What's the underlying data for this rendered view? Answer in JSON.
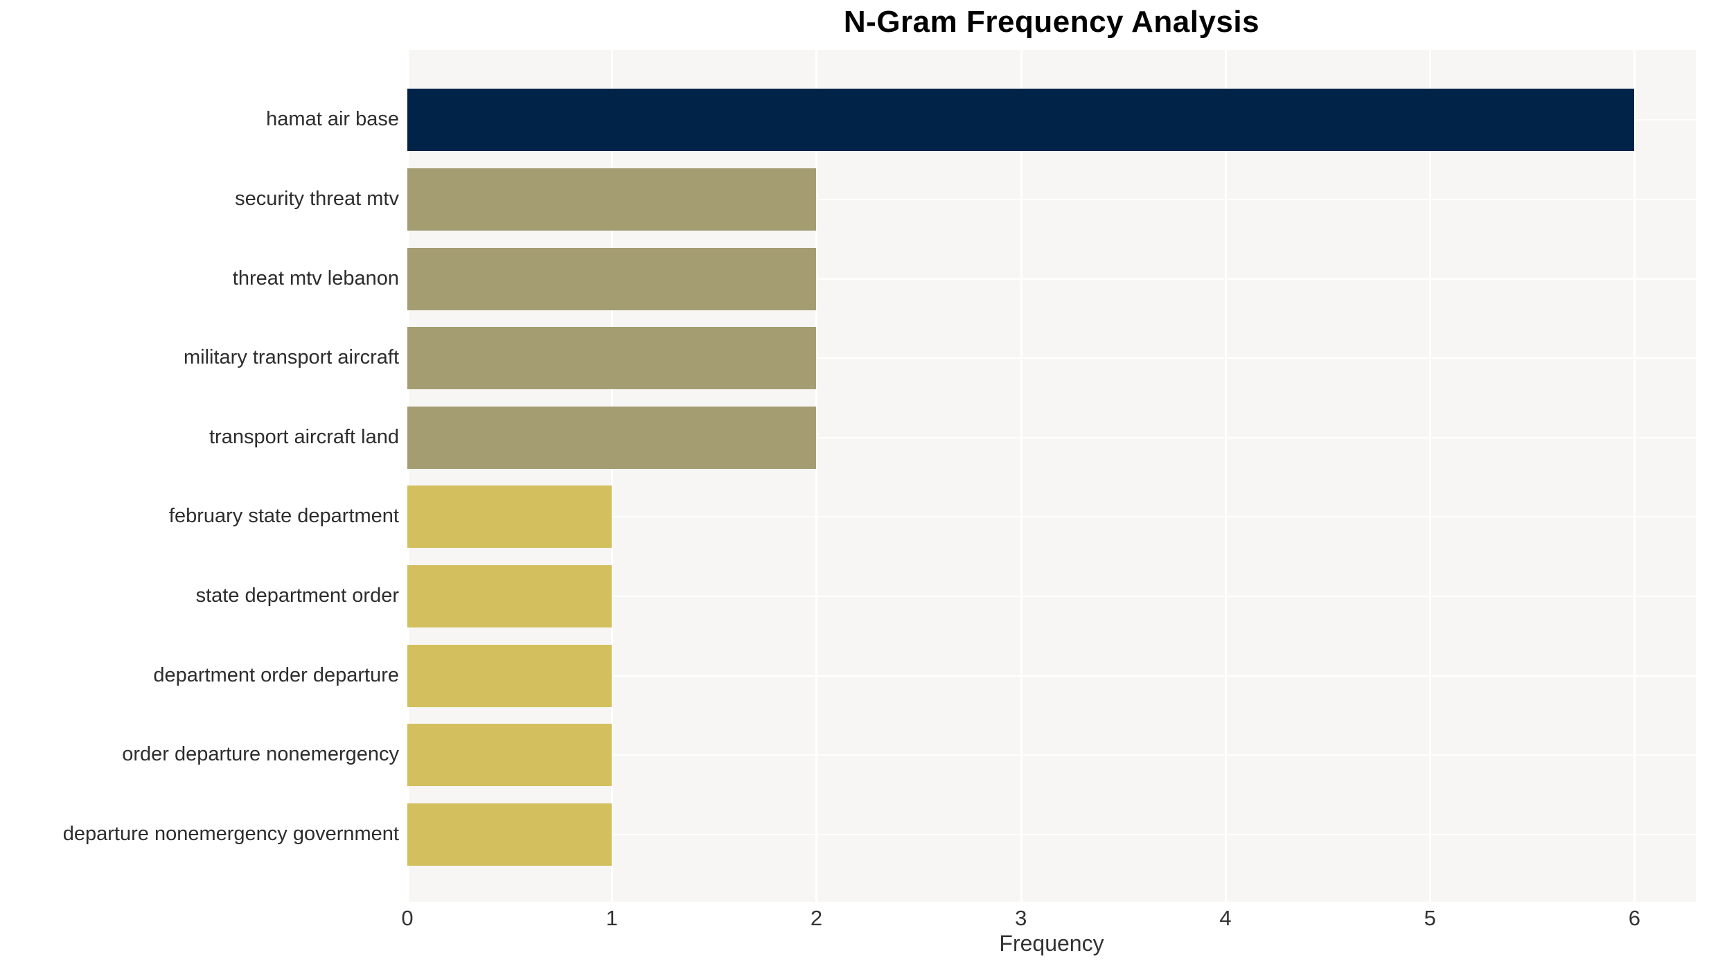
{
  "page": {
    "background": "#ffffff"
  },
  "chart_data": {
    "type": "bar",
    "orientation": "horizontal",
    "title": "N-Gram Frequency Analysis",
    "xlabel": "Frequency",
    "ylabel": "",
    "categories": [
      "hamat air base",
      "security threat mtv",
      "threat mtv lebanon",
      "military transport aircraft",
      "transport aircraft land",
      "february state department",
      "state department order",
      "department order departure",
      "order departure nonemergency",
      "departure nonemergency government"
    ],
    "values": [
      6,
      2,
      2,
      2,
      2,
      1,
      1,
      1,
      1,
      1
    ],
    "bar_colors": [
      "#022348",
      "#a59d72",
      "#a59d72",
      "#a59d72",
      "#a59d72",
      "#d3bf5e",
      "#d3bf5e",
      "#d3bf5e",
      "#d3bf5e",
      "#d3bf5e"
    ],
    "x_ticks": [
      0,
      1,
      2,
      3,
      4,
      5,
      6
    ],
    "xlim": [
      0,
      6.3
    ],
    "grid": true,
    "grid_color": "#ffffff",
    "plot_background": "#f7f6f5",
    "legend_position": "none"
  }
}
